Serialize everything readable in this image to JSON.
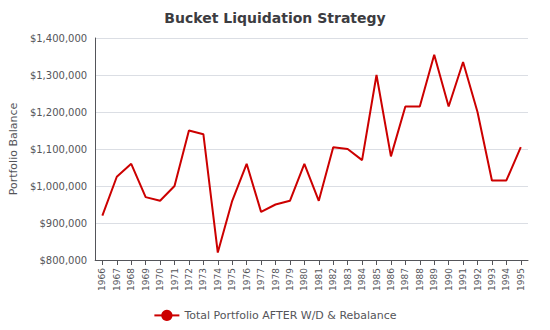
{
  "chart_data": {
    "type": "line",
    "title": "Bucket Liquidation Strategy",
    "ylabel": "Portfolio Balance",
    "x": [
      1966,
      1967,
      1968,
      1969,
      1970,
      1971,
      1972,
      1973,
      1974,
      1975,
      1976,
      1977,
      1978,
      1979,
      1980,
      1981,
      1982,
      1983,
      1984,
      1985,
      1986,
      1987,
      1988,
      1989,
      1990,
      1991,
      1992,
      1993,
      1994,
      1995
    ],
    "series": [
      {
        "name": "Total Portfolio AFTER W/D & Rebalance",
        "color": "#cc0000",
        "values": [
          920000,
          1025000,
          1060000,
          970000,
          960000,
          1000000,
          1150000,
          1140000,
          820000,
          960000,
          1060000,
          930000,
          950000,
          960000,
          1060000,
          960000,
          1105000,
          1100000,
          1070000,
          1300000,
          1080000,
          1215000,
          1215000,
          1355000,
          1215000,
          1335000,
          1200000,
          1015000,
          1015000,
          1105000
        ]
      }
    ],
    "xlim": [
      1965.5,
      1995.5
    ],
    "xticks": [
      1966,
      1967,
      1968,
      1969,
      1970,
      1971,
      1972,
      1973,
      1974,
      1975,
      1976,
      1977,
      1978,
      1979,
      1980,
      1981,
      1982,
      1983,
      1984,
      1985,
      1986,
      1987,
      1988,
      1989,
      1990,
      1991,
      1992,
      1993,
      1994,
      1995
    ],
    "ylim": [
      800000,
      1400000
    ],
    "yticks": [
      {
        "value": 800000,
        "label": "$800,000"
      },
      {
        "value": 900000,
        "label": "$900,000"
      },
      {
        "value": 1000000,
        "label": "$1,000,000"
      },
      {
        "value": 1100000,
        "label": "$1,100,000"
      },
      {
        "value": 1200000,
        "label": "$1,200,000"
      },
      {
        "value": 1300000,
        "label": "$1,300,000"
      },
      {
        "value": 1400000,
        "label": "$1,400,000"
      }
    ],
    "grid": true,
    "legend": "bottom"
  }
}
